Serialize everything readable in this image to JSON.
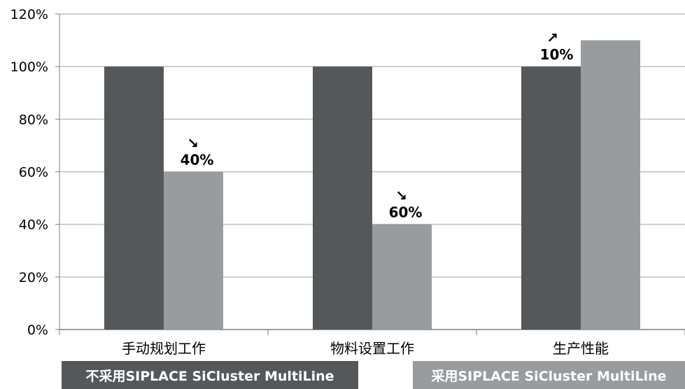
{
  "chart_data": {
    "type": "bar",
    "categories": [
      "手动规划工作",
      "物料设置工作",
      "生产性能"
    ],
    "series": [
      {
        "name": "不采用SIPLACE SiCluster MultiLine",
        "values": [
          100,
          100,
          100
        ],
        "color": "#54585a"
      },
      {
        "name": "采用SIPLACE SiCluster MultiLine",
        "values": [
          60,
          40,
          110
        ],
        "color": "#989c9e"
      }
    ],
    "annotations": [
      {
        "category": "手动规划工作",
        "arrow": "↘",
        "text": "40%"
      },
      {
        "category": "物料设置工作",
        "arrow": "↘",
        "text": "60%"
      },
      {
        "category": "生产性能",
        "arrow": "↗",
        "text": "10%"
      }
    ],
    "yticks": [
      "0%",
      "20%",
      "40%",
      "60%",
      "80%",
      "100%",
      "120%"
    ],
    "ylim": [
      0,
      120
    ],
    "grid": true,
    "legend_position": "bottom",
    "title": "",
    "xlabel": "",
    "ylabel": ""
  }
}
